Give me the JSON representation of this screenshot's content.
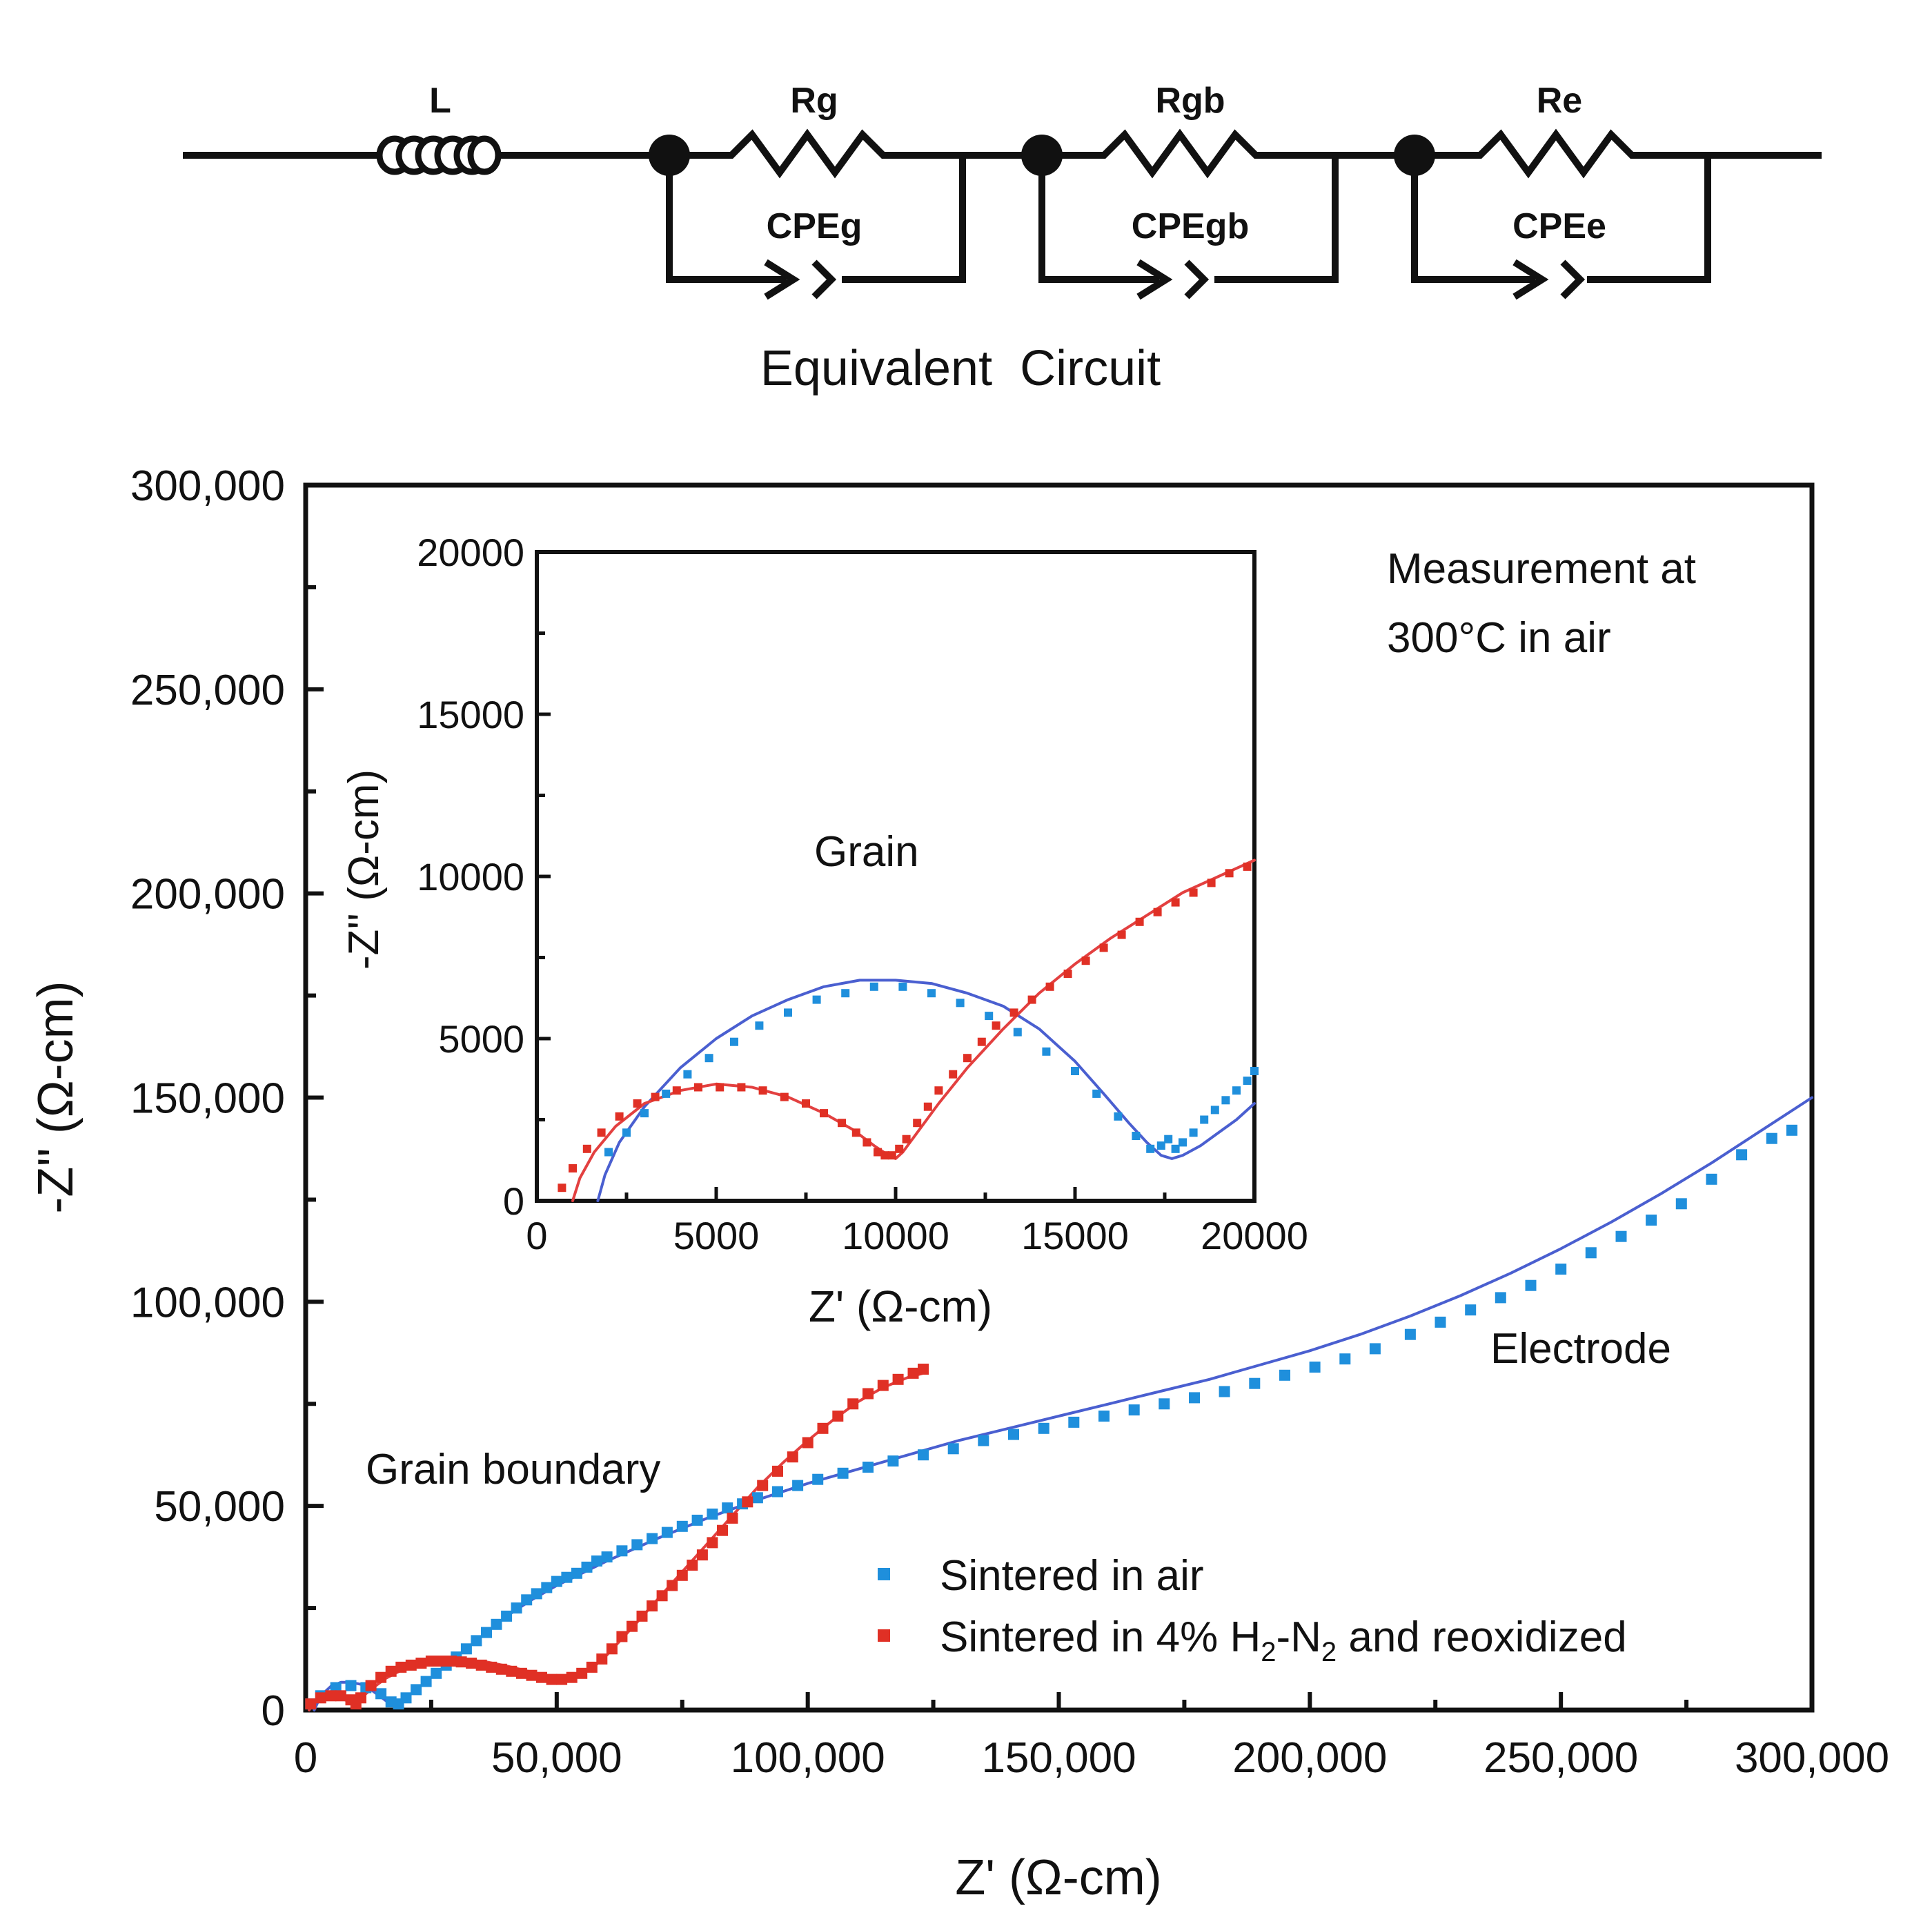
{
  "circuit": {
    "elements": {
      "inductor": "L",
      "r1": "Rg",
      "cpe1": "CPEg",
      "r2": "Rgb",
      "cpe2": "CPEgb",
      "r3": "Re",
      "cpe3": "CPEe"
    },
    "caption": "Equivalent  Circuit"
  },
  "colors": {
    "air": "#1f8fdc",
    "air_fit": "#4a5fd0",
    "reduced": "#e03025",
    "reduced_fit": "#e34040",
    "axis": "#111111"
  },
  "chart_data": [
    {
      "id": "main",
      "type": "scatter",
      "title": "",
      "xlabel": "Z' (Ω-cm)",
      "ylabel": "-Z'' (Ω-cm)",
      "xlim": [
        0,
        300000
      ],
      "ylim": [
        0,
        300000
      ],
      "x_ticks": [
        "0",
        "50,000",
        "100,000",
        "150,000",
        "200,000",
        "250,000",
        "300,000"
      ],
      "y_ticks": [
        "0",
        "50,000",
        "100,000",
        "150,000",
        "200,000",
        "250,000",
        "300,000"
      ],
      "annotations": {
        "measurement_line1": "Measurement at",
        "measurement_line2": "300°C in air",
        "grain_boundary": "Grain boundary",
        "electrode": "Electrode"
      },
      "legend": {
        "placement": "bottom-right",
        "entries": [
          {
            "label": "Sintered in air",
            "series": "air"
          },
          {
            "label_parts": [
              "Sintered in 4% H",
              "2",
              "-N",
              "2",
              " and reoxidized"
            ],
            "series": "reduced"
          }
        ]
      },
      "series": [
        {
          "name": "Sintered in air",
          "key": "air",
          "kind": "points",
          "x": [
            1000,
            3000,
            6000,
            9000,
            12000,
            15000,
            17000,
            18500,
            20000,
            22000,
            24000,
            26000,
            28000,
            30000,
            32000,
            34000,
            36000,
            38000,
            40000,
            42000,
            44000,
            46000,
            48000,
            50000,
            52000,
            54000,
            56000,
            58000,
            60000,
            63000,
            66000,
            69000,
            72000,
            75000,
            78000,
            81000,
            84000,
            87000,
            90000,
            94000,
            98000,
            102000,
            107000,
            112000,
            117000,
            123000,
            129000,
            135000,
            141000,
            147000,
            153000,
            159000,
            165000,
            171000,
            177000,
            183000,
            189000,
            195000,
            201000,
            207000,
            213000,
            220000,
            226000,
            232000,
            238000,
            244000,
            250000,
            256000,
            262000,
            268000,
            274000,
            280000,
            286000,
            292000,
            296000
          ],
          "y": [
            1500,
            3500,
            5500,
            6000,
            5500,
            4000,
            2000,
            1500,
            3000,
            5000,
            7000,
            9000,
            11000,
            13000,
            15000,
            17000,
            19000,
            21000,
            23000,
            25000,
            27000,
            28500,
            30000,
            31500,
            32500,
            33500,
            35000,
            36500,
            37500,
            39000,
            40500,
            42000,
            43500,
            45000,
            46500,
            48000,
            49500,
            50500,
            52000,
            53500,
            55000,
            56500,
            58000,
            59500,
            61000,
            62500,
            64000,
            66000,
            67500,
            69000,
            70500,
            72000,
            73500,
            75000,
            76500,
            78000,
            80000,
            82000,
            84000,
            86000,
            88500,
            92000,
            95000,
            98000,
            101000,
            104000,
            108000,
            112000,
            116000,
            120000,
            124000,
            130000,
            136000,
            140000,
            142000
          ]
        },
        {
          "name": "Sintered in 4% H2-N2 and reoxidized",
          "key": "reduced",
          "kind": "points",
          "x": [
            1000,
            3000,
            5000,
            7000,
            9000,
            10000,
            11000,
            13000,
            15000,
            17000,
            19000,
            21000,
            23000,
            25000,
            27000,
            29000,
            31000,
            33000,
            35000,
            37000,
            39000,
            41000,
            43000,
            45000,
            47000,
            49000,
            51000,
            53000,
            55000,
            57000,
            59000,
            61000,
            63000,
            65000,
            67000,
            69000,
            71000,
            73000,
            75000,
            77000,
            79000,
            81000,
            83000,
            85000,
            88000,
            91000,
            94000,
            97000,
            100000,
            103000,
            106000,
            109000,
            112000,
            115000,
            118000,
            121000,
            123000
          ],
          "y": [
            1500,
            3000,
            3500,
            3500,
            2500,
            1500,
            3000,
            6000,
            8000,
            9500,
            10500,
            11000,
            11500,
            12000,
            12000,
            12000,
            11800,
            11500,
            11000,
            10500,
            10000,
            9500,
            9000,
            8500,
            8000,
            7500,
            7500,
            8000,
            9000,
            10500,
            12500,
            15000,
            18000,
            20500,
            23000,
            25500,
            28000,
            30500,
            33000,
            35500,
            38000,
            41000,
            44000,
            47000,
            51000,
            55000,
            58500,
            62000,
            65500,
            69000,
            72000,
            75000,
            77500,
            79500,
            81000,
            82500,
            83500
          ]
        },
        {
          "name": "Sintered in air (fit)",
          "key": "air_fit",
          "kind": "line",
          "x": [
            1700,
            3000,
            5000,
            7000,
            9000,
            11000,
            13000,
            15000,
            16500,
            17500,
            18500,
            20000,
            25000,
            30000,
            35000,
            40000,
            45000,
            50000,
            55000,
            60000,
            70000,
            80000,
            90000,
            100000,
            110000,
            120000,
            130000,
            140000,
            150000,
            160000,
            170000,
            180000,
            190000,
            200000,
            210000,
            220000,
            230000,
            240000,
            250000,
            260000,
            270000,
            280000,
            290000,
            300000
          ],
          "y": [
            0,
            3500,
            5800,
            6800,
            6800,
            6300,
            5000,
            3200,
            1800,
            1300,
            1600,
            3000,
            8000,
            13000,
            18000,
            23000,
            27000,
            30500,
            33500,
            36500,
            42000,
            47000,
            51500,
            55500,
            59000,
            62500,
            66000,
            69000,
            72000,
            75000,
            78000,
            81000,
            84500,
            88000,
            92000,
            96500,
            101500,
            107000,
            113000,
            119500,
            126500,
            134000,
            142000,
            150000
          ]
        },
        {
          "name": "Sintered in 4% H2-N2 and reoxidized (fit)",
          "key": "reduced_fit",
          "kind": "line",
          "x": [
            700,
            1500,
            3000,
            5000,
            7000,
            8500,
            9500,
            10000,
            10500,
            12000,
            14000,
            16000,
            18000,
            20000,
            24000,
            28000,
            32000,
            36000,
            40000,
            44000,
            48000,
            51000,
            54000,
            57000,
            60000,
            63000,
            66000,
            70000,
            74000,
            78000,
            82000,
            86000,
            90000,
            95000,
            100000,
            105000,
            110000,
            115000,
            120000,
            123000
          ],
          "y": [
            0,
            2000,
            3200,
            3500,
            3000,
            2100,
            1500,
            1300,
            1700,
            4000,
            6000,
            7800,
            9100,
            10300,
            11500,
            12200,
            12300,
            11800,
            10800,
            9600,
            8300,
            7700,
            8300,
            10200,
            13500,
            17500,
            21500,
            27000,
            32500,
            38000,
            43500,
            49000,
            54500,
            60500,
            66000,
            71000,
            75500,
            79000,
            81500,
            82500
          ]
        }
      ]
    },
    {
      "id": "inset",
      "type": "scatter",
      "title": "",
      "xlabel": "Z' (Ω-cm)",
      "ylabel": "-Z'' (Ω-cm)",
      "xlim": [
        0,
        20000
      ],
      "ylim": [
        0,
        20000
      ],
      "x_ticks": [
        "0",
        "5000",
        "10000",
        "15000",
        "20000"
      ],
      "y_ticks": [
        "0",
        "5000",
        "10000",
        "15000",
        "20000"
      ],
      "annotations": {
        "grain": "Grain"
      },
      "series": [
        {
          "name": "Sintered in air",
          "key": "air",
          "kind": "points",
          "x": [
            2000,
            2500,
            3000,
            3600,
            4200,
            4800,
            5500,
            6200,
            7000,
            7800,
            8600,
            9400,
            10200,
            11000,
            11800,
            12600,
            13400,
            14200,
            15000,
            15600,
            16200,
            16700,
            17100,
            17400,
            17600,
            17800,
            18000,
            18300,
            18600,
            18900,
            19200,
            19500,
            19800,
            20000
          ],
          "y": [
            1500,
            2100,
            2700,
            3300,
            3900,
            4400,
            4900,
            5400,
            5800,
            6200,
            6400,
            6600,
            6600,
            6400,
            6100,
            5700,
            5200,
            4600,
            4000,
            3300,
            2600,
            2000,
            1600,
            1700,
            1900,
            1600,
            1800,
            2100,
            2500,
            2800,
            3100,
            3400,
            3700,
            4000
          ]
        },
        {
          "name": "Sintered in 4% H2-N2 and reoxidized",
          "key": "reduced",
          "kind": "points",
          "x": [
            700,
            1000,
            1400,
            1800,
            2300,
            2800,
            3300,
            3900,
            4500,
            5100,
            5700,
            6300,
            6900,
            7500,
            8000,
            8500,
            8900,
            9200,
            9500,
            9700,
            9900,
            10100,
            10300,
            10600,
            10900,
            11200,
            11600,
            12000,
            12400,
            12800,
            13300,
            13800,
            14300,
            14800,
            15300,
            15800,
            16300,
            16800,
            17300,
            17800,
            18300,
            18800,
            19300,
            19800
          ],
          "y": [
            400,
            1000,
            1600,
            2100,
            2600,
            3000,
            3200,
            3400,
            3500,
            3500,
            3500,
            3400,
            3200,
            3000,
            2700,
            2400,
            2100,
            1800,
            1500,
            1400,
            1400,
            1600,
            1900,
            2400,
            2900,
            3400,
            3900,
            4400,
            4900,
            5400,
            5800,
            6200,
            6600,
            7000,
            7400,
            7800,
            8200,
            8600,
            8900,
            9200,
            9500,
            9800,
            10100,
            10300
          ]
        },
        {
          "name": "Sintered in air (fit)",
          "key": "air_fit",
          "kind": "line",
          "x": [
            1700,
            1900,
            2300,
            3000,
            4000,
            5000,
            6000,
            7000,
            8000,
            9000,
            10000,
            11000,
            12000,
            13000,
            14000,
            15000,
            15800,
            16500,
            17000,
            17400,
            17700,
            18000,
            18500,
            19000,
            19500,
            20000
          ],
          "y": [
            0,
            800,
            1800,
            2900,
            4100,
            5000,
            5700,
            6200,
            6600,
            6800,
            6800,
            6700,
            6400,
            6000,
            5300,
            4300,
            3300,
            2400,
            1800,
            1400,
            1300,
            1400,
            1700,
            2100,
            2500,
            3000
          ]
        },
        {
          "name": "Sintered in 4% H2-N2 and reoxidized (fit)",
          "key": "reduced_fit",
          "kind": "line",
          "x": [
            1000,
            1200,
            1600,
            2200,
            3000,
            4000,
            5000,
            6000,
            7000,
            8000,
            8800,
            9400,
            9800,
            10000,
            10200,
            10600,
            11200,
            12000,
            13000,
            14000,
            15000,
            16000,
            17000,
            18000,
            19000,
            20000
          ],
          "y": [
            0,
            700,
            1500,
            2300,
            3000,
            3400,
            3600,
            3500,
            3200,
            2700,
            2200,
            1700,
            1400,
            1300,
            1500,
            2100,
            3000,
            4100,
            5300,
            6400,
            7300,
            8100,
            8800,
            9500,
            10000,
            10500
          ]
        }
      ]
    }
  ]
}
